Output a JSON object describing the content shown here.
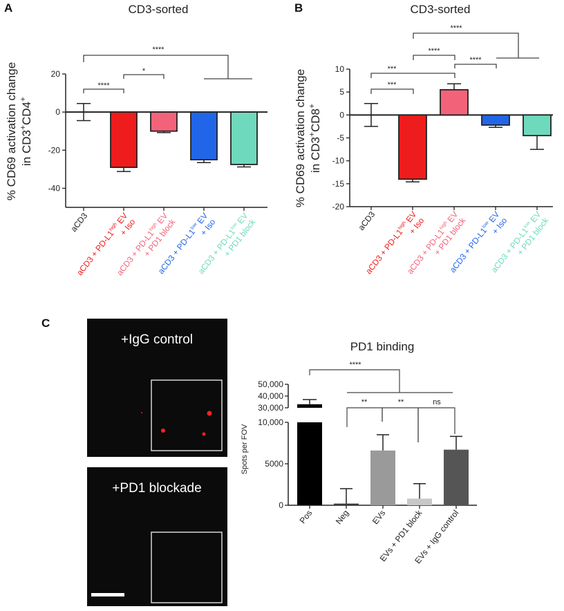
{
  "chart_data": [
    {
      "panel": "A",
      "type": "bar",
      "title": "CD3-sorted",
      "ylabel": "% CD69 activation change in CD3+CD4+",
      "ylabel_line1": "% CD69 activation change",
      "ylabel_line2": "in CD3",
      "ylabel_sup1": "+",
      "ylabel_mid": "CD4",
      "ylabel_sup2": "+",
      "ylim": [
        -50,
        20
      ],
      "yticks": [
        20,
        0,
        -20,
        -40
      ],
      "categories": [
        "aCD3",
        "aCD3 + PD-L1high EV + Iso",
        "aCD3 + PD-L1high EV + PD1 block",
        "aCD3 + PD-L1low EV + Iso",
        "aCD3 + PD-L1low EV + PD1 block"
      ],
      "category_lines": [
        {
          "l1": "aCD3",
          "sup": "",
          "l1b": "",
          "l2": ""
        },
        {
          "l1": "aCD3 + PD-L1",
          "sup": "high",
          "l1b": " EV",
          "l2": "+ Iso"
        },
        {
          "l1": "aCD3 + PD-L1",
          "sup": "high",
          "l1b": " EV",
          "l2": "+ PD1 block"
        },
        {
          "l1": "aCD3 + PD-L1",
          "sup": "low",
          "l1b": " EV",
          "l2": "+ Iso"
        },
        {
          "l1": "aCD3 + PD-L1",
          "sup": "low",
          "l1b": " EV",
          "l2": "+ PD1 block"
        }
      ],
      "values": [
        0,
        -29,
        -10,
        -25,
        -27.5
      ],
      "errors": [
        4.5,
        2.2,
        0.8,
        1.5,
        1.3
      ],
      "colors": [
        "#ffffff",
        "#ee1c1c",
        "#f2637a",
        "#2166e8",
        "#6fd9bd"
      ],
      "label_colors": [
        "#222222",
        "#ee1c1c",
        "#f2637a",
        "#2166e8",
        "#6fd9bd"
      ],
      "significance": [
        {
          "label": "****",
          "from": 0,
          "to": 1
        },
        {
          "label": "*",
          "from": 1,
          "to": 2
        },
        {
          "label": "****",
          "from": 0,
          "to": "3-4"
        }
      ]
    },
    {
      "panel": "B",
      "type": "bar",
      "title": "CD3-sorted",
      "ylabel": "% CD69 activation change in CD3+CD8+",
      "ylabel_line1": "% CD69 activation change",
      "ylabel_line2": "in CD3",
      "ylabel_sup1": "+",
      "ylabel_mid": "CD8",
      "ylabel_sup2": "+",
      "ylim": [
        -20,
        10
      ],
      "yticks": [
        10,
        5,
        0,
        -5,
        -10,
        -15,
        -20
      ],
      "categories": [
        "aCD3",
        "aCD3 + PD-L1high EV + Iso",
        "aCD3 + PD-L1high EV + PD1 block",
        "aCD3 + PD-L1low EV + Iso",
        "aCD3 + PD-L1low EV + PD1 block"
      ],
      "category_lines": [
        {
          "l1": "aCD3",
          "sup": "",
          "l1b": "",
          "l2": ""
        },
        {
          "l1": "aCD3 + PD-L1",
          "sup": "high",
          "l1b": " EV",
          "l2": "+ Iso"
        },
        {
          "l1": "aCD3 + PD-L1",
          "sup": "high",
          "l1b": " EV",
          "l2": "+ PD1 block"
        },
        {
          "l1": "aCD3 + PD-L1",
          "sup": "low",
          "l1b": " EV",
          "l2": "+ Iso"
        },
        {
          "l1": "aCD3 + PD-L1",
          "sup": "low",
          "l1b": " EV",
          "l2": "+ PD1 block"
        }
      ],
      "values": [
        0,
        -14,
        5.5,
        -2.2,
        -4.5
      ],
      "errors": [
        2.5,
        0.6,
        1.3,
        0.5,
        3.0
      ],
      "colors": [
        "#ffffff",
        "#ee1c1c",
        "#f2637a",
        "#2166e8",
        "#6fd9bd"
      ],
      "label_colors": [
        "#222222",
        "#ee1c1c",
        "#f2637a",
        "#2166e8",
        "#6fd9bd"
      ],
      "significance": [
        {
          "label": "***",
          "from": 0,
          "to": 1
        },
        {
          "label": "***",
          "from": 0,
          "to": 2
        },
        {
          "label": "****",
          "from": 1,
          "to": 2
        },
        {
          "label": "****",
          "from": 2,
          "to": 3
        },
        {
          "label": "****",
          "from": 2,
          "to": "3-4"
        }
      ]
    },
    {
      "panel": "C",
      "type": "bar",
      "title": "PD1 binding",
      "ylabel": "Spots per FOV",
      "y_axis_break": true,
      "ylim_lower": [
        0,
        10000
      ],
      "ylim_upper": [
        30000,
        50000
      ],
      "yticks_lower": [
        0,
        5000,
        10000
      ],
      "yticks_upper": [
        30000,
        40000,
        50000
      ],
      "ytick_labels_lower": [
        "0",
        "5000",
        "10,000"
      ],
      "ytick_labels_upper": [
        "30,000",
        "40,000",
        "50,000"
      ],
      "categories": [
        "Pos",
        "Neg",
        "EVs",
        "EVs + PD1 block",
        "EVs + IgG control"
      ],
      "values": [
        33000,
        200,
        6600,
        800,
        6700
      ],
      "errors": [
        4000,
        1800,
        1900,
        1800,
        1600
      ],
      "colors": [
        "#000000",
        "#3a3a3a",
        "#9a9a9a",
        "#c8c8c8",
        "#555555"
      ],
      "significance": [
        {
          "label": "****",
          "from": 0,
          "to": "1-4"
        },
        {
          "label": "**",
          "from": 1,
          "to": 2
        },
        {
          "label": "**",
          "from": 2,
          "to": 3
        },
        {
          "label": "ns",
          "from": 3,
          "to": 4
        }
      ]
    }
  ],
  "panels": {
    "a_letter": "A",
    "b_letter": "B",
    "c_letter": "C"
  },
  "micrographs": {
    "top_label": "+IgG control",
    "bottom_label": "+PD1 blockade",
    "background_color": "#0b0b0b",
    "spot_color": "#ff2020"
  }
}
